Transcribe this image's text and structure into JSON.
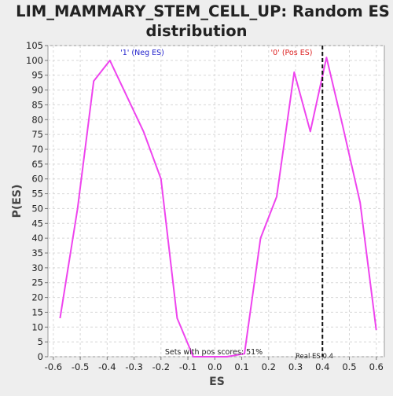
{
  "chart_data": {
    "type": "line",
    "title": "LIM_MAMMARY_STEM_CELL_UP: Random ES distribution",
    "title_lines": [
      "LIM_MAMMARY_STEM_CELL_UP: Random ES",
      "distribution"
    ],
    "xlabel": "ES",
    "ylabel": "P(ES)",
    "xlim": [
      -0.62,
      0.63
    ],
    "ylim": [
      0,
      105
    ],
    "x_ticks": [
      -0.6,
      -0.5,
      -0.4,
      -0.3,
      -0.2,
      -0.1,
      0.0,
      0.1,
      0.2,
      0.3,
      0.4,
      0.5,
      0.6
    ],
    "x_tick_labels": [
      "-0.6",
      "-0.5",
      "-0.4",
      "-0.3",
      "-0.2",
      "-0.1",
      "0.0",
      "0.1",
      "0.2",
      "0.3",
      "0.4",
      "0.5",
      "0.6"
    ],
    "y_ticks": [
      0,
      5,
      10,
      15,
      20,
      25,
      30,
      35,
      40,
      45,
      50,
      55,
      60,
      65,
      70,
      75,
      80,
      85,
      90,
      95,
      100,
      105
    ],
    "y_tick_labels": [
      "0",
      "5",
      "10",
      "15",
      "20",
      "25",
      "30",
      "35",
      "40",
      "45",
      "50",
      "55",
      "60",
      "65",
      "70",
      "75",
      "80",
      "85",
      "90",
      "95",
      "100",
      "105"
    ],
    "grid": true,
    "series": [
      {
        "x": [
          -0.575,
          -0.51,
          -0.45,
          -0.39,
          -0.265,
          -0.2,
          -0.14,
          -0.08,
          -0.015,
          0.045,
          0.11,
          0.17,
          0.23,
          0.295,
          0.355,
          0.415,
          0.475,
          0.54,
          0.6
        ],
        "y": [
          13,
          50,
          93,
          100,
          76,
          60,
          13,
          0,
          0,
          0,
          1,
          40,
          54,
          96,
          76,
          101,
          78,
          52,
          9
        ],
        "color": "#ee44ee"
      }
    ],
    "real_es": 0.4,
    "annotations": {
      "neg_label": "'1' (Neg ES)",
      "pos_label": "'0' (Pos ES)",
      "pos_scores": "Sets with pos scores: 51%",
      "real_es_label": "Real ES 0.4"
    },
    "colors": {
      "line": "#ee44ee",
      "neg_label": "#2222cc",
      "pos_label": "#dd2222",
      "grid": "#d8d8d8",
      "plot_bg": "#ffffff",
      "page_bg": "#eeeeee"
    }
  }
}
